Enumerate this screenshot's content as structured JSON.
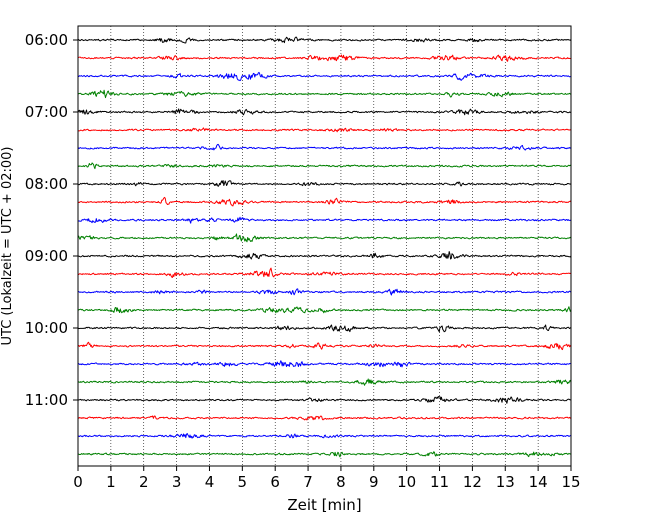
{
  "chart_data": {
    "type": "line",
    "title": "",
    "xlabel": "Zeit  [min]",
    "ylabel": "UTC (Lokalzeit = UTC + 02:00)",
    "xlim": [
      0,
      15
    ],
    "x_ticks": [
      0,
      1,
      2,
      3,
      4,
      5,
      6,
      7,
      8,
      9,
      10,
      11,
      12,
      13,
      14,
      15
    ],
    "x_tick_labels": [
      "0",
      "1",
      "2",
      "3",
      "4",
      "5",
      "6",
      "7",
      "8",
      "9",
      "10",
      "11",
      "12",
      "13",
      "14",
      "15"
    ],
    "vertical_grid": true,
    "grid_style": "dotted",
    "y_tick_labels": [
      "06:00",
      "07:00",
      "08:00",
      "09:00",
      "10:00",
      "11:00"
    ],
    "trace_rows": [
      "06:00",
      "06:15",
      "06:30",
      "06:45",
      "07:00",
      "07:15",
      "07:30",
      "07:45",
      "08:00",
      "08:15",
      "08:30",
      "08:45",
      "09:00",
      "09:15",
      "09:30",
      "09:45",
      "10:00",
      "10:15",
      "10:30",
      "10:45",
      "11:00",
      "11:15",
      "11:30",
      "11:45"
    ],
    "trace_colors": [
      "#000000",
      "#ff0000",
      "#0000ff",
      "#008000"
    ],
    "minutes_per_row": 15,
    "legend": "none"
  }
}
